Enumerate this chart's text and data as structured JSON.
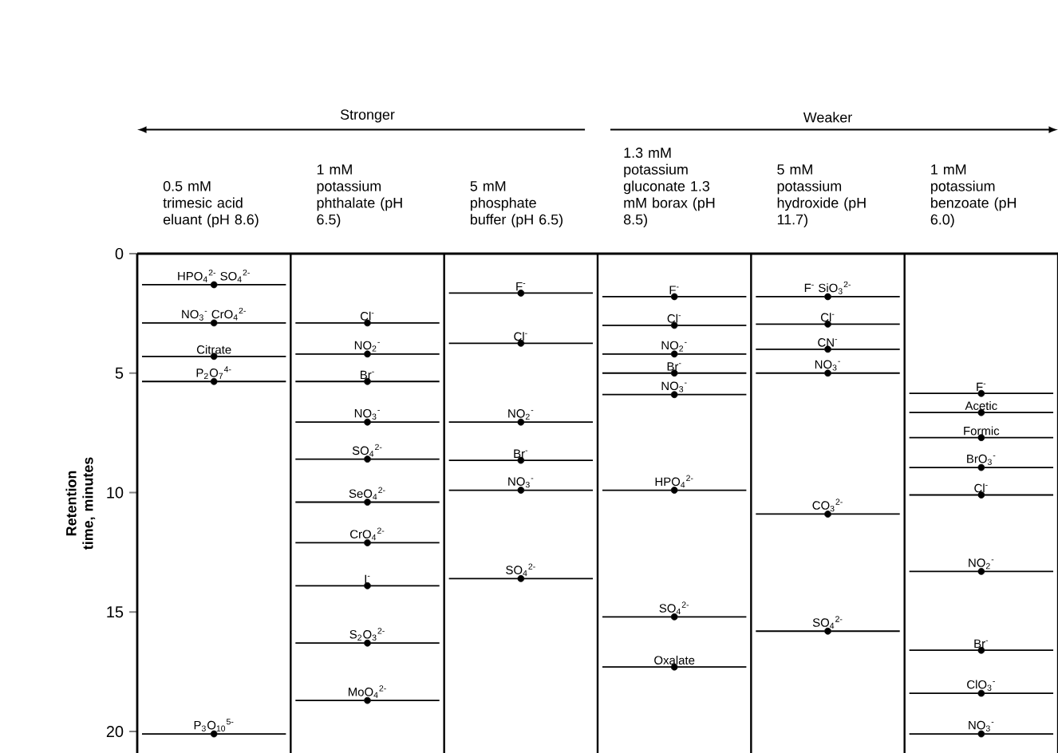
{
  "chart_data": {
    "type": "scatter",
    "ylabel": "Retention time, minutes",
    "categories": [
      "0.5 mM trimesic acid eluant (pH 8.6)",
      "1 mM potassium phthalate (pH 6.5)",
      "5 mM phosphate buffer (pH 6.5)",
      "1.3 mM potassium gluconate 1.3 mM borax (pH 8.5)",
      "5 mM potassium hydroxide (pH 11.7)",
      "1 mM potassium benzoate (pH 6.0)"
    ],
    "ylim": [
      20.9,
      0
    ],
    "marker": "circle",
    "yticks": [
      0,
      5,
      10,
      15,
      20
    ],
    "series": [
      {
        "color": "#000000",
        "x": [
          "0.5 mM trimesic acid eluant (pH 8.6)",
          "0.5 mM trimesic acid eluant (pH 8.6)",
          "0.5 mM trimesic acid eluant (pH 8.6)",
          "0.5 mM trimesic acid eluant (pH 8.6)",
          "0.5 mM trimesic acid eluant (pH 8.6)"
        ],
        "values": [
          1.3,
          2.9,
          4.3,
          5.35,
          20.1
        ]
      },
      {
        "color": "#000000",
        "x": [
          "1 mM potassium phthalate (pH 6.5)",
          "1 mM potassium phthalate (pH 6.5)",
          "1 mM potassium phthalate (pH 6.5)",
          "1 mM potassium phthalate (pH 6.5)",
          "1 mM potassium phthalate (pH 6.5)",
          "1 mM potassium phthalate (pH 6.5)",
          "1 mM potassium phthalate (pH 6.5)",
          "1 mM potassium phthalate (pH 6.5)",
          "1 mM potassium phthalate (pH 6.5)",
          "1 mM potassium phthalate (pH 6.5)"
        ],
        "values": [
          2.9,
          4.2,
          5.35,
          7.05,
          8.6,
          10.4,
          12.1,
          13.9,
          16.3,
          18.7
        ]
      },
      {
        "color": "#000000",
        "x": [
          "5 mM phosphate buffer (pH 6.5)",
          "5 mM phosphate buffer (pH 6.5)",
          "5 mM phosphate buffer (pH 6.5)",
          "5 mM phosphate buffer (pH 6.5)",
          "5 mM phosphate buffer (pH 6.5)",
          "5 mM phosphate buffer (pH 6.5)"
        ],
        "values": [
          1.65,
          3.75,
          7.05,
          8.65,
          9.9,
          13.6
        ]
      },
      {
        "color": "#000000",
        "x": [
          "1.3 mM potassium gluconate 1.3 mM borax (pH 8.5)",
          "1.3 mM potassium gluconate 1.3 mM borax (pH 8.5)",
          "1.3 mM potassium gluconate 1.3 mM borax (pH 8.5)",
          "1.3 mM potassium gluconate 1.3 mM borax (pH 8.5)",
          "1.3 mM potassium gluconate 1.3 mM borax (pH 8.5)",
          "1.3 mM potassium gluconate 1.3 mM borax (pH 8.5)",
          "1.3 mM potassium gluconate 1.3 mM borax (pH 8.5)",
          "1.3 mM potassium gluconate 1.3 mM borax (pH 8.5)"
        ],
        "values": [
          1.8,
          3.0,
          4.2,
          5.0,
          5.9,
          9.9,
          15.2,
          17.3
        ]
      },
      {
        "color": "#000000",
        "x": [
          "5 mM potassium hydroxide (pH 11.7)",
          "5 mM potassium hydroxide (pH 11.7)",
          "5 mM potassium hydroxide (pH 11.7)",
          "5 mM potassium hydroxide (pH 11.7)",
          "5 mM potassium hydroxide (pH 11.7)",
          "5 mM potassium hydroxide (pH 11.7)"
        ],
        "values": [
          1.8,
          2.95,
          4.0,
          5.0,
          10.9,
          15.8
        ]
      },
      {
        "color": "#000000",
        "x": [
          "1 mM potassium benzoate (pH 6.0)",
          "1 mM potassium benzoate (pH 6.0)",
          "1 mM potassium benzoate (pH 6.0)",
          "1 mM potassium benzoate (pH 6.0)",
          "1 mM potassium benzoate (pH 6.0)",
          "1 mM potassium benzoate (pH 6.0)",
          "1 mM potassium benzoate (pH 6.0)",
          "1 mM potassium benzoate (pH 6.0)",
          "1 mM potassium benzoate (pH 6.0)"
        ],
        "values": [
          5.85,
          6.65,
          7.7,
          8.95,
          10.1,
          13.3,
          16.6,
          18.4,
          20.1
        ]
      }
    ],
    "annotations": [
      "Stronger",
      "Weaker",
      {
        "text": "HPO$_{4}$$^{2-}$ SO$_{4}$$^{2-}$",
        "x": "0.5 mM trimesic acid eluant (pH 8.6)",
        "y": 1.3
      },
      {
        "text": "NO$_{3}$$^{-}$ CrO$_{4}$$^{2-}$",
        "x": "0.5 mM trimesic acid eluant (pH 8.6)",
        "y": 2.9
      },
      {
        "text": "Citrate",
        "x": "0.5 mM trimesic acid eluant (pH 8.6)",
        "y": 4.3
      },
      {
        "text": "P$_{2}$O$_{7}$$^{4-}$",
        "x": "0.5 mM trimesic acid eluant (pH 8.6)",
        "y": 5.35
      },
      {
        "text": "P$_{3}$O$_{10}$$^{5-}$",
        "x": "0.5 mM trimesic acid eluant (pH 8.6)",
        "y": 20.1
      },
      {
        "text": "Cl$^{-}$",
        "x": "1 mM potassium phthalate (pH 6.5)",
        "y": 2.9
      },
      {
        "text": "NO$_{2}$$^{-}$",
        "x": "1 mM potassium phthalate (pH 6.5)",
        "y": 4.2
      },
      {
        "text": "Br$^{-}$",
        "x": "1 mM potassium phthalate (pH 6.5)",
        "y": 5.35
      },
      {
        "text": "NO$_{3}$$^{-}$",
        "x": "1 mM potassium phthalate (pH 6.5)",
        "y": 7.05
      },
      {
        "text": "SO$_{4}$$^{2-}$",
        "x": "1 mM potassium phthalate (pH 6.5)",
        "y": 8.6
      },
      {
        "text": "SeO$_{4}$$^{2-}$",
        "x": "1 mM potassium phthalate (pH 6.5)",
        "y": 10.4
      },
      {
        "text": "CrO$_{4}$$^{2-}$",
        "x": "1 mM potassium phthalate (pH 6.5)",
        "y": 12.1
      },
      {
        "text": "I$^{-}$",
        "x": "1 mM potassium phthalate (pH 6.5)",
        "y": 13.9
      },
      {
        "text": "S$_{2}$O$_{3}$$^{2-}$",
        "x": "1 mM potassium phthalate (pH 6.5)",
        "y": 16.3
      },
      {
        "text": "MoO$_{4}$$^{2-}$",
        "x": "1 mM potassium phthalate (pH 6.5)",
        "y": 18.7
      },
      {
        "text": "F$^{-}$",
        "x": "5 mM phosphate buffer (pH 6.5)",
        "y": 1.65
      },
      {
        "text": "Cl$^{-}$",
        "x": "5 mM phosphate buffer (pH 6.5)",
        "y": 3.75
      },
      {
        "text": "NO$_{2}$$^{-}$",
        "x": "5 mM phosphate buffer (pH 6.5)",
        "y": 7.05
      },
      {
        "text": "Br$^{-}$",
        "x": "5 mM phosphate buffer (pH 6.5)",
        "y": 8.65
      },
      {
        "text": "NO$_{3}$$^{-}$",
        "x": "5 mM phosphate buffer (pH 6.5)",
        "y": 9.9
      },
      {
        "text": "SO$_{4}$$^{2-}$",
        "x": "5 mM phosphate buffer (pH 6.5)",
        "y": 13.6
      },
      {
        "text": "F$^{-}$",
        "x": "1.3 mM potassium gluconate 1.3 mM borax (pH 8.5)",
        "y": 1.8
      },
      {
        "text": "Cl$^{-}$",
        "x": "1.3 mM potassium gluconate 1.3 mM borax (pH 8.5)",
        "y": 3.0
      },
      {
        "text": "NO$_{2}$$^{-}$",
        "x": "1.3 mM potassium gluconate 1.3 mM borax (pH 8.5)",
        "y": 4.2
      },
      {
        "text": "Br$^{-}$",
        "x": "1.3 mM potassium gluconate 1.3 mM borax (pH 8.5)",
        "y": 5.0
      },
      {
        "text": "NO$_{3}$$^{-}$",
        "x": "1.3 mM potassium gluconate 1.3 mM borax (pH 8.5)",
        "y": 5.9
      },
      {
        "text": "HPO$_{4}$$^{2-}$",
        "x": "1.3 mM potassium gluconate 1.3 mM borax (pH 8.5)",
        "y": 9.9
      },
      {
        "text": "SO$_{4}$$^{2-}$",
        "x": "1.3 mM potassium gluconate 1.3 mM borax (pH 8.5)",
        "y": 15.2
      },
      {
        "text": "Oxalate",
        "x": "1.3 mM potassium gluconate 1.3 mM borax (pH 8.5)",
        "y": 17.3
      },
      {
        "text": "F$^{-}$ SiO$_{3}$$^{2-}$",
        "x": "5 mM potassium hydroxide (pH 11.7)",
        "y": 1.8
      },
      {
        "text": "Cl$^{-}$",
        "x": "5 mM potassium hydroxide (pH 11.7)",
        "y": 2.95
      },
      {
        "text": "CN$^{-}$",
        "x": "5 mM potassium hydroxide (pH 11.7)",
        "y": 4.0
      },
      {
        "text": "NO$_{3}$$^{-}$",
        "x": "5 mM potassium hydroxide (pH 11.7)",
        "y": 5.0
      },
      {
        "text": "CO$_{3}$$^{2-}$",
        "x": "5 mM potassium hydroxide (pH 11.7)",
        "y": 10.9
      },
      {
        "text": "SO$_{4}$$^{2-}$",
        "x": "5 mM potassium hydroxide (pH 11.7)",
        "y": 15.8
      },
      {
        "text": "F$^{-}$",
        "x": "1 mM potassium benzoate (pH 6.0)",
        "y": 5.85
      },
      {
        "text": "Acetic",
        "x": "1 mM potassium benzoate (pH 6.0)",
        "y": 6.65
      },
      {
        "text": "Formic",
        "x": "1 mM potassium benzoate (pH 6.0)",
        "y": 7.7
      },
      {
        "text": "BrO$_{3}$$^{-}$",
        "x": "1 mM potassium benzoate (pH 6.0)",
        "y": 8.95
      },
      {
        "text": "Cl$^{-}$",
        "x": "1 mM potassium benzoate (pH 6.0)",
        "y": 10.1
      },
      {
        "text": "NO$_{2}$$^{-}$",
        "x": "1 mM potassium benzoate (pH 6.0)",
        "y": 13.3
      },
      {
        "text": "Br$^{-}$",
        "x": "1 mM potassium benzoate (pH 6.0)",
        "y": 16.6
      },
      {
        "text": "ClO$_{3}$$^{-}$",
        "x": "1 mM potassium benzoate (pH 6.0)",
        "y": 18.4
      },
      {
        "text": "NO$_{3}$$^{-}$",
        "x": "1 mM potassium benzoate (pH 6.0)",
        "y": 20.1
      }
    ]
  }
}
